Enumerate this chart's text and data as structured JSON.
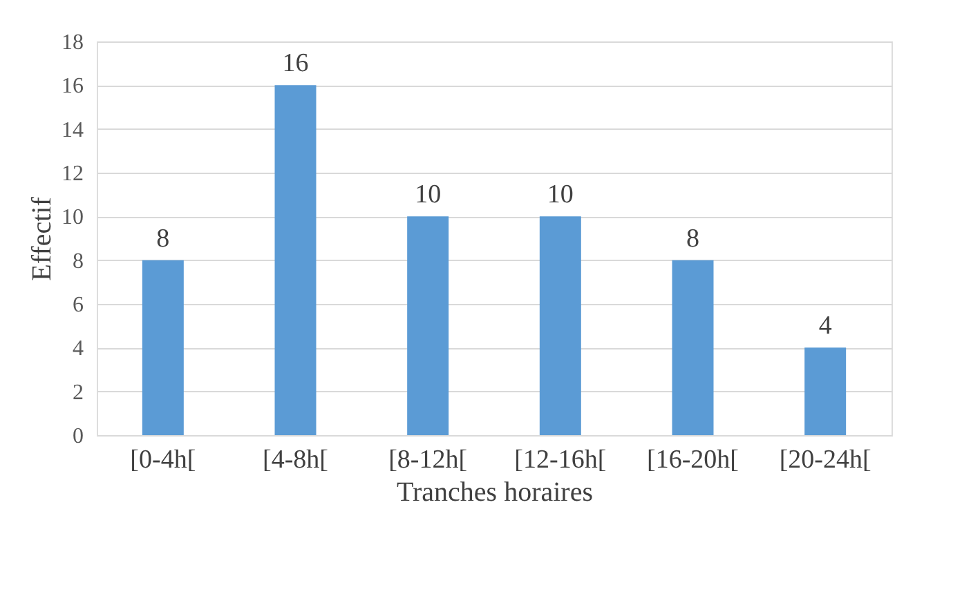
{
  "chart_data": {
    "type": "bar",
    "xlabel": "Tranches horaires",
    "ylabel": "Effectif",
    "categories": [
      "[0-4h[",
      "[4-8h[",
      "[8-12h[",
      "[12-16h[",
      "[16-20h[",
      "[20-24h["
    ],
    "values": [
      8,
      16,
      10,
      10,
      8,
      4
    ],
    "color": "#5b9bd5",
    "ylim": [
      0,
      18
    ],
    "yticks": [
      0,
      2,
      4,
      6,
      8,
      10,
      12,
      14,
      16,
      18
    ],
    "grid": "y",
    "data_labels": true
  }
}
